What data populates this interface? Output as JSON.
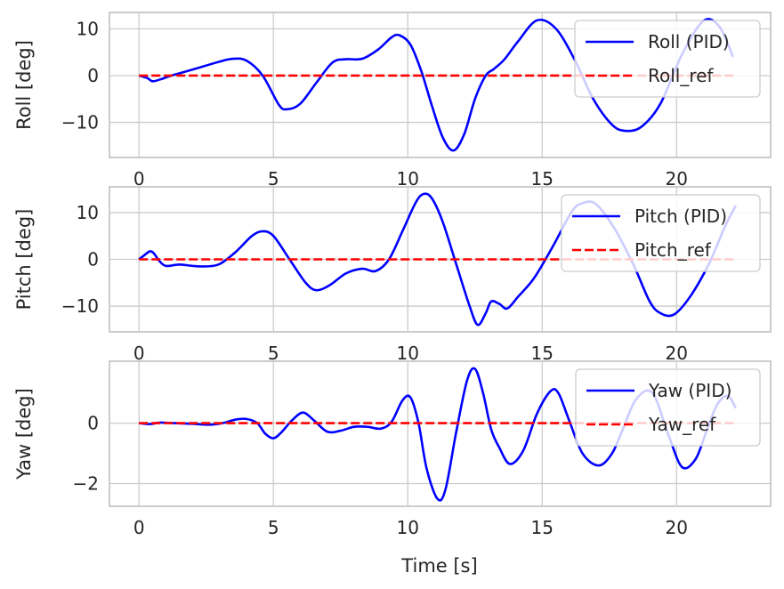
{
  "figure": {
    "xlabel": "Time [s]"
  },
  "chart_data": [
    {
      "type": "line",
      "ylabel": "Roll [deg]",
      "xlim": [
        -1.1,
        23.5
      ],
      "ylim": [
        -17.5,
        13.5
      ],
      "xticks": [
        0,
        5,
        10,
        15,
        20
      ],
      "yticks": [
        10,
        0,
        -10
      ],
      "ytick_labels": [
        "10",
        "0",
        "−10"
      ],
      "grid": true,
      "legend_position": "upper right",
      "series": [
        {
          "name": "Roll (PID)",
          "color": "#0000ff",
          "style": "solid",
          "x": [
            0,
            0.3,
            0.5,
            0.8,
            1.2,
            2,
            3,
            3.5,
            4,
            4.6,
            5.2,
            5.5,
            6,
            6.6,
            7.2,
            7.7,
            8.3,
            8.9,
            9.4,
            9.7,
            10.1,
            10.5,
            10.9,
            11.3,
            11.7,
            12.1,
            12.5,
            12.9,
            13.2,
            13.6,
            14.1,
            14.8,
            15.5,
            16.2,
            16.9,
            17.6,
            18.1,
            18.7,
            19.4,
            20.2,
            21,
            21.6,
            22.1
          ],
          "values": [
            0,
            -0.5,
            -1.2,
            -0.8,
            0,
            1.3,
            3,
            3.6,
            3.2,
            0,
            -6.2,
            -7.2,
            -6,
            -1.5,
            2.8,
            3.5,
            3.6,
            5.6,
            8.2,
            8.6,
            6.6,
            1,
            -6.5,
            -13.2,
            -16,
            -12.5,
            -5,
            0,
            1.4,
            3.5,
            7.3,
            11.8,
            10.1,
            3.5,
            -5,
            -10.5,
            -11.8,
            -10.9,
            -6,
            4.5,
            11.7,
            10.4,
            4
          ]
        },
        {
          "name": "Roll_ref",
          "color": "#ff0000",
          "style": "dashed",
          "x": [
            0,
            22.2
          ],
          "values": [
            0,
            0
          ]
        }
      ]
    },
    {
      "type": "line",
      "ylabel": "Pitch [deg]",
      "xlim": [
        -1.1,
        23.5
      ],
      "ylim": [
        -15.5,
        15.5
      ],
      "xticks": [
        0,
        5,
        10,
        15,
        20
      ],
      "yticks": [
        10,
        0,
        -10
      ],
      "ytick_labels": [
        "10",
        "0",
        "−10"
      ],
      "grid": true,
      "legend_position": "upper right",
      "series": [
        {
          "name": "Pitch (PID)",
          "color": "#0000ff",
          "style": "solid",
          "x": [
            0,
            0.2,
            0.4,
            0.55,
            0.75,
            1,
            1.5,
            2,
            2.5,
            3,
            3.6,
            4.2,
            4.6,
            5,
            5.6,
            6.2,
            6.6,
            7.1,
            7.7,
            8.3,
            8.8,
            9.3,
            9.8,
            10.3,
            10.6,
            10.9,
            11.3,
            11.8,
            12.3,
            12.6,
            12.9,
            13.1,
            13.4,
            13.7,
            14.1,
            14.7,
            15.4,
            16.1,
            16.5,
            17,
            17.7,
            18.4,
            19,
            19.4,
            19.9,
            20.5,
            21.2,
            21.8,
            22.2
          ],
          "values": [
            0,
            0.9,
            1.7,
            1.3,
            -0.3,
            -1.4,
            -1.1,
            -1.4,
            -1.5,
            -1,
            1.6,
            5,
            6,
            5,
            0,
            -5,
            -6.6,
            -5.5,
            -3,
            -2,
            -2.5,
            0,
            6,
            12.2,
            14,
            13,
            8,
            -1,
            -10,
            -14,
            -11.5,
            -9,
            -9.5,
            -10.5,
            -8,
            -4,
            2.8,
            10.2,
            12,
            11.8,
            6.5,
            -1.2,
            -9,
            -11.5,
            -11.8,
            -8,
            -1,
            7,
            11.5
          ]
        },
        {
          "name": "Pitch_ref",
          "color": "#ff0000",
          "style": "dashed",
          "x": [
            0,
            22.2
          ],
          "values": [
            0,
            0
          ]
        }
      ]
    },
    {
      "type": "line",
      "ylabel": "Yaw [deg]",
      "xlim": [
        -1.1,
        23.5
      ],
      "ylim": [
        -2.75,
        2.05
      ],
      "xticks": [
        0,
        5,
        10,
        15,
        20
      ],
      "yticks": [
        0,
        -2
      ],
      "ytick_labels": [
        "0",
        "−2"
      ],
      "grid": true,
      "legend_position": "upper right",
      "series": [
        {
          "name": "Yaw (PID)",
          "color": "#0000ff",
          "style": "solid",
          "x": [
            0,
            0.4,
            0.8,
            1.3,
            2,
            2.6,
            3.1,
            3.6,
            4,
            4.4,
            4.7,
            5,
            5.3,
            5.7,
            6.1,
            6.5,
            7,
            7.5,
            8,
            8.5,
            9,
            9.4,
            9.8,
            10.1,
            10.4,
            10.7,
            11.1,
            11.4,
            11.8,
            12.2,
            12.5,
            12.8,
            13.1,
            13.4,
            13.8,
            14.3,
            14.8,
            15.3,
            15.6,
            16,
            16.5,
            17.1,
            17.6,
            18,
            18.5,
            19.1,
            19.7,
            20.2,
            20.7,
            21.1,
            21.5,
            21.9,
            22.2
          ],
          "values": [
            0,
            -0.03,
            0.02,
            0,
            -0.02,
            -0.05,
            0,
            0.12,
            0.14,
            0,
            -0.35,
            -0.5,
            -0.3,
            0.1,
            0.35,
            0.1,
            -0.28,
            -0.25,
            -0.12,
            -0.12,
            -0.18,
            0.05,
            0.75,
            0.85,
            0,
            -1.5,
            -2.5,
            -2.2,
            -0.3,
            1.4,
            1.8,
            1,
            -0.2,
            -0.8,
            -1.35,
            -0.9,
            0.3,
            1.05,
            1,
            0.1,
            -1,
            -1.4,
            -1,
            -0.2,
            0.8,
            1,
            -0.4,
            -1.45,
            -1.2,
            -0.3,
            0.6,
            0.9,
            0.5
          ]
        },
        {
          "name": "Yaw_ref",
          "color": "#ff0000",
          "style": "dashed",
          "x": [
            0,
            22.2
          ],
          "values": [
            0,
            0
          ]
        }
      ]
    }
  ]
}
